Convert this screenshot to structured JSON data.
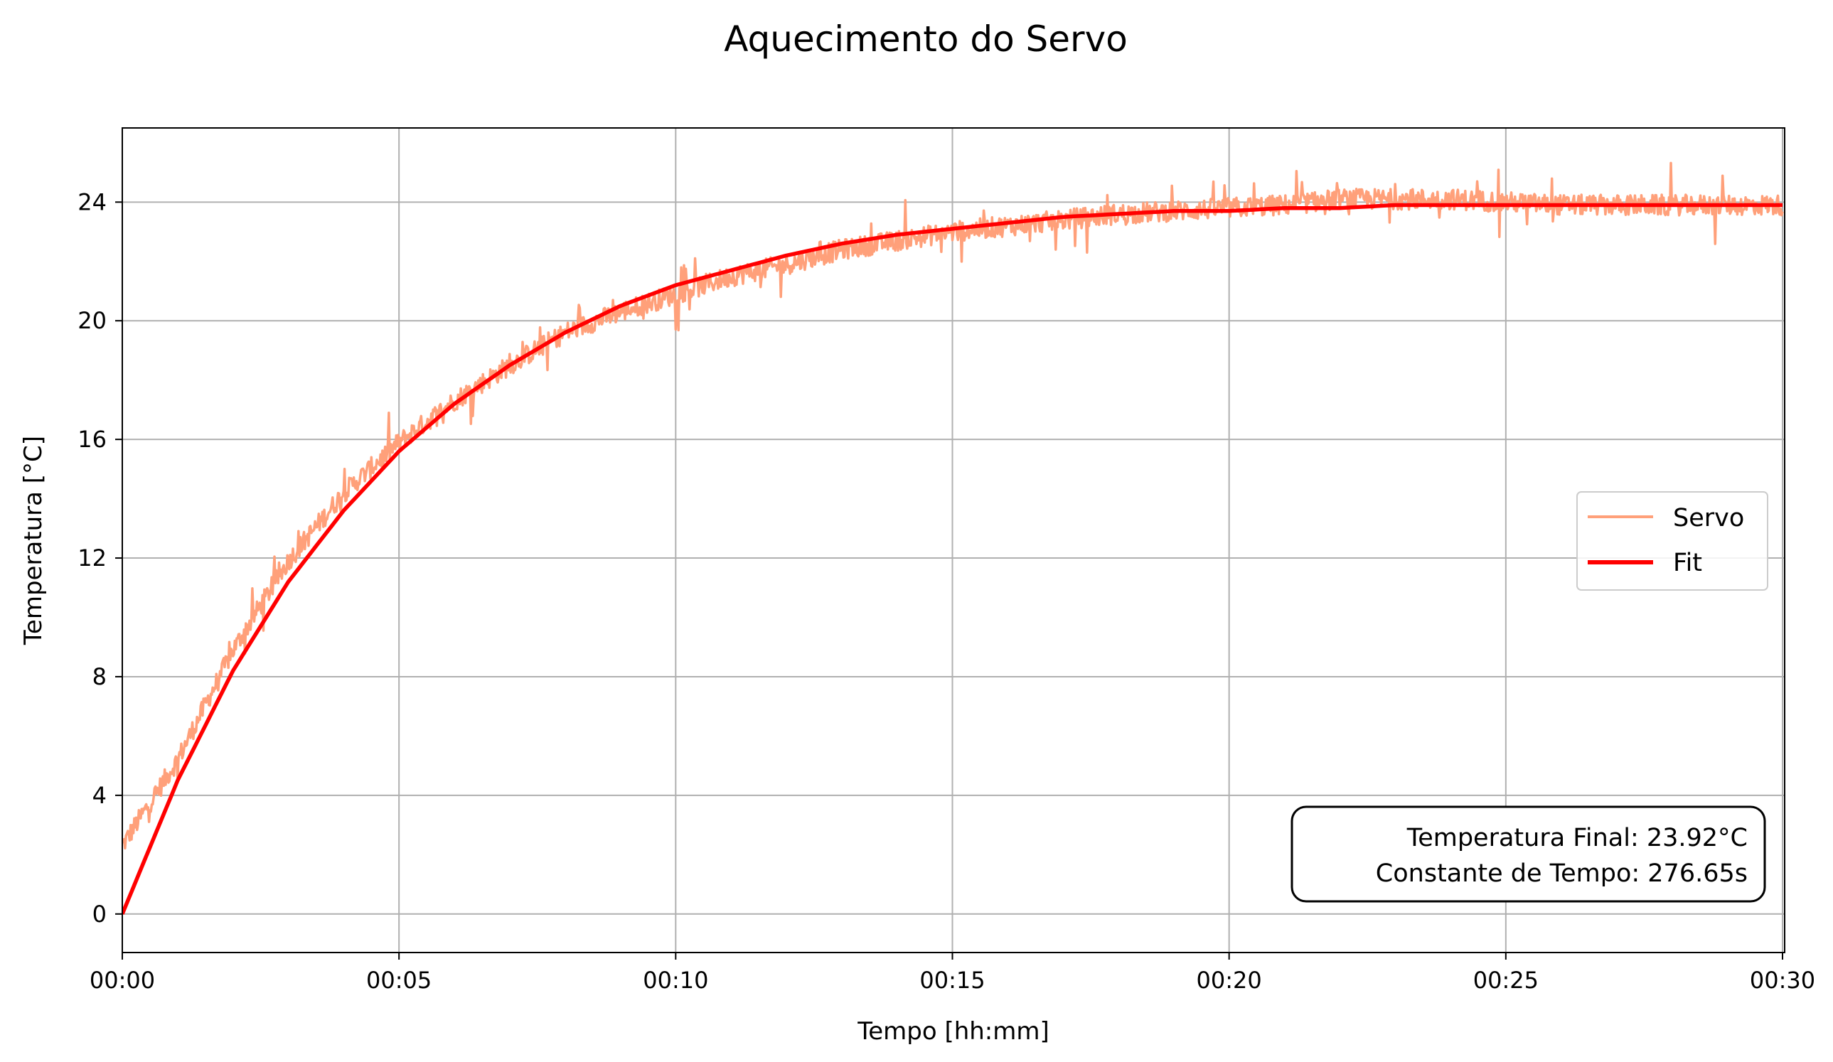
{
  "chart_data": {
    "type": "line",
    "title": "Aquecimento do Servo",
    "xlabel": "Tempo [hh:mm]",
    "ylabel": "Temperatura [°C]",
    "x_unit": "hh:mm",
    "xlim": [
      "00:00",
      "00:30"
    ],
    "ylim": [
      -1.3,
      26.5
    ],
    "xticks": [
      "00:00",
      "00:05",
      "00:10",
      "00:15",
      "00:20",
      "00:25",
      "00:30"
    ],
    "yticks": [
      0,
      4,
      8,
      12,
      16,
      20,
      24
    ],
    "grid": true,
    "legend": {
      "placement": "center-right",
      "entries": [
        "Servo",
        "Fit"
      ]
    },
    "colors": {
      "Servo": "#ffa07a",
      "Fit": "#ff0000"
    },
    "series": [
      {
        "name": "Servo",
        "style": "noisy measurement",
        "x": [
          "00:00",
          "00:01",
          "00:02",
          "00:03",
          "00:04",
          "00:05",
          "00:06",
          "00:07",
          "00:08",
          "00:09",
          "00:10",
          "00:11",
          "00:12",
          "00:13",
          "00:14",
          "00:15",
          "00:16",
          "00:17",
          "00:18",
          "00:19",
          "00:20",
          "00:21",
          "00:22",
          "00:23",
          "00:24",
          "00:25",
          "00:26",
          "00:27",
          "00:28",
          "00:29",
          "00:30"
        ],
        "y": [
          2.3,
          5.2,
          8.9,
          11.9,
          14.2,
          15.9,
          17.3,
          18.5,
          19.6,
          20.3,
          20.9,
          21.5,
          21.9,
          22.4,
          22.7,
          23.0,
          23.2,
          23.4,
          23.6,
          23.7,
          23.8,
          23.9,
          24.1,
          24.1,
          24.1,
          24.0,
          23.9,
          23.9,
          23.9,
          23.9,
          23.9
        ]
      },
      {
        "name": "Fit",
        "style": "exponential fit",
        "x": [
          "00:00",
          "00:01",
          "00:02",
          "00:03",
          "00:04",
          "00:05",
          "00:06",
          "00:07",
          "00:08",
          "00:09",
          "00:10",
          "00:11",
          "00:12",
          "00:13",
          "00:14",
          "00:15",
          "00:16",
          "00:17",
          "00:18",
          "00:19",
          "00:20",
          "00:21",
          "00:22",
          "00:23",
          "00:24",
          "00:25",
          "00:26",
          "00:27",
          "00:28",
          "00:29",
          "00:30"
        ],
        "y": [
          0.0,
          4.5,
          8.2,
          11.2,
          13.6,
          15.6,
          17.2,
          18.5,
          19.6,
          20.5,
          21.2,
          21.7,
          22.2,
          22.6,
          22.9,
          23.1,
          23.3,
          23.5,
          23.6,
          23.7,
          23.7,
          23.8,
          23.8,
          23.9,
          23.9,
          23.9,
          23.9,
          23.9,
          23.9,
          23.9,
          23.9
        ]
      }
    ],
    "annotation": {
      "line1": "Temperatura Final: 23.92°C",
      "line2": "Constante de Tempo: 276.65s",
      "placement": "bottom-right"
    }
  }
}
